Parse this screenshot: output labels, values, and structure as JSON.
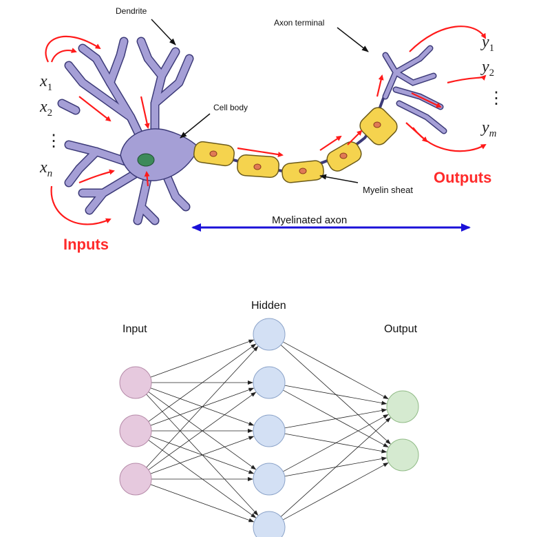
{
  "neuron": {
    "labels": {
      "dendrite": "Dendrite",
      "axon_terminal": "Axon terminal",
      "cell_body": "Cell body",
      "myelin_sheat": "Myelin sheat",
      "myelinated_axon": "Myelinated axon",
      "inputs": "Inputs",
      "outputs": "Outputs"
    },
    "inputs": [
      {
        "base": "x",
        "sub": "1"
      },
      {
        "base": "x",
        "sub": "2"
      },
      {
        "base": "x",
        "sub": "n"
      }
    ],
    "outputs": [
      {
        "base": "y",
        "sub": "1"
      },
      {
        "base": "y",
        "sub": "2"
      },
      {
        "base": "y",
        "sub": "m"
      }
    ],
    "ellipsis": "⋮",
    "colors": {
      "neuron_fill": "#a59fd6",
      "nucleus": "#3d8a5a",
      "myelin": "#f5d34e",
      "node": "#e07a55",
      "signal_arrow": "#ff1a1a",
      "axon_arrow": "#1a10d8",
      "io_label": "#ff2a2a"
    }
  },
  "network": {
    "layer_labels": {
      "input": "Input",
      "hidden": "Hidden",
      "output": "Output"
    },
    "layers": [
      {
        "name": "input",
        "count": 3,
        "fill": "#e6c9de",
        "stroke": "#b58aa8"
      },
      {
        "name": "hidden",
        "count": 5,
        "fill": "#d3e0f4",
        "stroke": "#8aa2c8"
      },
      {
        "name": "output",
        "count": 2,
        "fill": "#d5ead0",
        "stroke": "#8fba85"
      }
    ],
    "connection": "fully-connected"
  }
}
